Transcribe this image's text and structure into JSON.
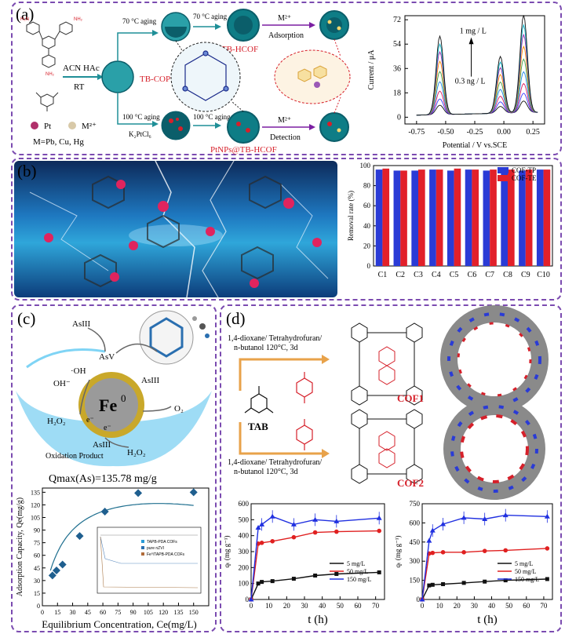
{
  "panel_a": {
    "label": "(a)",
    "reactant1": "ACN HAc",
    "conditions": "RT",
    "core": "TB-COP",
    "aging1": "70 °C aging",
    "aging2": "70 °C aging",
    "product1": "TB-HCOF",
    "adsorption": "M²⁺",
    "adsorption_label": "Adsorption",
    "aging3": "100 °C aging",
    "aging4": "100 °C aging",
    "k2ptcl6": "K₂PtCl₆",
    "product2": "PtNPs@TB-HCOF",
    "detection_ion": "M²⁺",
    "detection_label": "Detection",
    "legend_pt": "Pt",
    "legend_m": "M²⁺",
    "metals": "M=Pb, Cu, Hg",
    "chart": {
      "annot_hi": "1 mg / L",
      "annot_lo": "0.3 ng / L"
    }
  },
  "panel_b": {
    "label": "(b)"
  },
  "panel_c": {
    "label": "(c)",
    "as3_top": "AsIII",
    "as5": "AsV",
    "oh_rad": "·OH",
    "oh_minus": "OH⁻",
    "as3_right": "AsIII",
    "fe0": "Fe",
    "fe_sup": "0",
    "o2": "O₂",
    "h2o2_left": "H₂O₂",
    "e1": "e⁻",
    "e2": "e⁻",
    "as3_bottom": "AsIII",
    "h2o2_bottom": "H₂O₂",
    "oxidation": "Oxidation Product",
    "chart": {
      "qmax": "Qmax(As)=135.78 mg/g",
      "inset_legend": [
        "TAPB-PDA COFs",
        "pure nZVI",
        "Fe⁰/TAPB-PDA COFs"
      ]
    }
  },
  "panel_d": {
    "label": "(d)",
    "solvent1_l1": "1,4-dioxane/ Tetrahydrofuran/",
    "solvent1_l2": "n-butanol 120°C, 3d",
    "solvent2_l1": "1,4-dioxane/ Tetrahydrofuran/",
    "solvent2_l2": "n-butanol 120°C, 3d",
    "tab": "TAB",
    "cof1": "COF1",
    "cof2": "COF2"
  },
  "colors": {
    "border": "#7b4bb0",
    "red": "#d6202a",
    "blue": "#2a3bd6",
    "teal": "#1f8f97",
    "dark_teal": "#0b5e6a"
  },
  "chart_data": [
    {
      "id": "dpv",
      "type": "line",
      "xlabel": "Potential / V vs.SCE",
      "ylabel": "Current / μA",
      "xlim": [
        -0.85,
        0.35
      ],
      "ylim": [
        -5,
        75
      ],
      "xticks": [
        -0.75,
        -0.5,
        -0.25,
        0.0,
        0.25
      ],
      "xtick_labels": [
        "-0.75",
        "-0.50",
        "-0.25",
        "0.00",
        "0.25"
      ],
      "yticks": [
        0,
        18,
        36,
        54,
        72
      ],
      "peaks": [
        -0.55,
        -0.03,
        0.17
      ],
      "curve_scales": [
        0.12,
        0.2,
        0.3,
        0.42,
        0.55,
        0.68,
        0.8,
        0.9,
        1.0
      ],
      "curve_colors": [
        "#111111",
        "#3b3bff",
        "#d81b60",
        "#1e88e5",
        "#43a047",
        "#fb8c00",
        "#8e24aa",
        "#00acc1",
        "#111111"
      ]
    },
    {
      "id": "removal",
      "type": "bar",
      "ylabel": "Removal rate (%)",
      "ylim": [
        0,
        100
      ],
      "yticks": [
        0,
        20,
        40,
        60,
        80,
        100
      ],
      "categories": [
        "C1",
        "C2",
        "C3",
        "C4",
        "C5",
        "C6",
        "C7",
        "C8",
        "C9",
        "C10"
      ],
      "series": [
        {
          "name": "COF-TP",
          "values": [
            96,
            95,
            95,
            96,
            95,
            96,
            95,
            96,
            95,
            96
          ]
        },
        {
          "name": "COF-TE",
          "values": [
            97,
            95,
            96,
            96,
            97,
            96,
            96,
            96,
            96,
            96
          ]
        }
      ]
    },
    {
      "id": "isotherm",
      "type": "scatter",
      "xlabel": "Equilibrium Concentration, Ce(mg/L)",
      "ylabel": "Adsorption Capacity, Qe(mg/g)",
      "xlim": [
        0,
        165
      ],
      "ylim": [
        0,
        140
      ],
      "xticks": [
        0,
        15,
        30,
        45,
        60,
        75,
        90,
        105,
        120,
        135,
        150
      ],
      "yticks": [
        0,
        15,
        30,
        45,
        60,
        75,
        90,
        105,
        120,
        135
      ],
      "x": [
        10,
        14,
        20,
        37,
        62,
        95,
        150
      ],
      "y": [
        36,
        42,
        49,
        83,
        112,
        134,
        135
      ]
    },
    {
      "id": "kinetics1",
      "type": "line",
      "xlabel": "t (h)",
      "ylabel": "qₜ (mg g⁻¹)",
      "xlim": [
        0,
        75
      ],
      "ylim": [
        0,
        600
      ],
      "xticks": [
        0,
        10,
        20,
        30,
        40,
        50,
        60,
        70
      ],
      "yticks": [
        0,
        100,
        200,
        300,
        400,
        500,
        600
      ],
      "x": [
        0,
        4,
        6,
        12,
        24,
        36,
        48,
        72
      ],
      "series": [
        {
          "name": "5 mg/L",
          "color": "#111111",
          "values": [
            0,
            100,
            110,
            115,
            130,
            150,
            160,
            170
          ]
        },
        {
          "name": "50 mg/L",
          "color": "#e02020",
          "values": [
            0,
            350,
            355,
            365,
            390,
            420,
            425,
            430
          ]
        },
        {
          "name": "150 mg/L",
          "color": "#2030e0",
          "values": [
            0,
            450,
            470,
            520,
            470,
            500,
            490,
            510
          ]
        }
      ]
    },
    {
      "id": "kinetics2",
      "type": "line",
      "xlabel": "t (h)",
      "ylabel": "qₜ (mg g⁻¹)",
      "xlim": [
        0,
        75
      ],
      "ylim": [
        0,
        750
      ],
      "xticks": [
        0,
        10,
        20,
        30,
        40,
        50,
        60,
        70
      ],
      "yticks": [
        0,
        150,
        300,
        450,
        600,
        750
      ],
      "x": [
        0,
        4,
        6,
        12,
        24,
        36,
        48,
        72
      ],
      "series": [
        {
          "name": "5 mg/L",
          "color": "#111111",
          "values": [
            0,
            110,
            115,
            120,
            130,
            140,
            150,
            160
          ]
        },
        {
          "name": "50 mg/L",
          "color": "#e02020",
          "values": [
            0,
            360,
            365,
            370,
            370,
            380,
            385,
            400
          ]
        },
        {
          "name": "150 mg/L",
          "color": "#2030e0",
          "values": [
            0,
            460,
            540,
            590,
            640,
            630,
            660,
            650
          ]
        }
      ]
    }
  ]
}
